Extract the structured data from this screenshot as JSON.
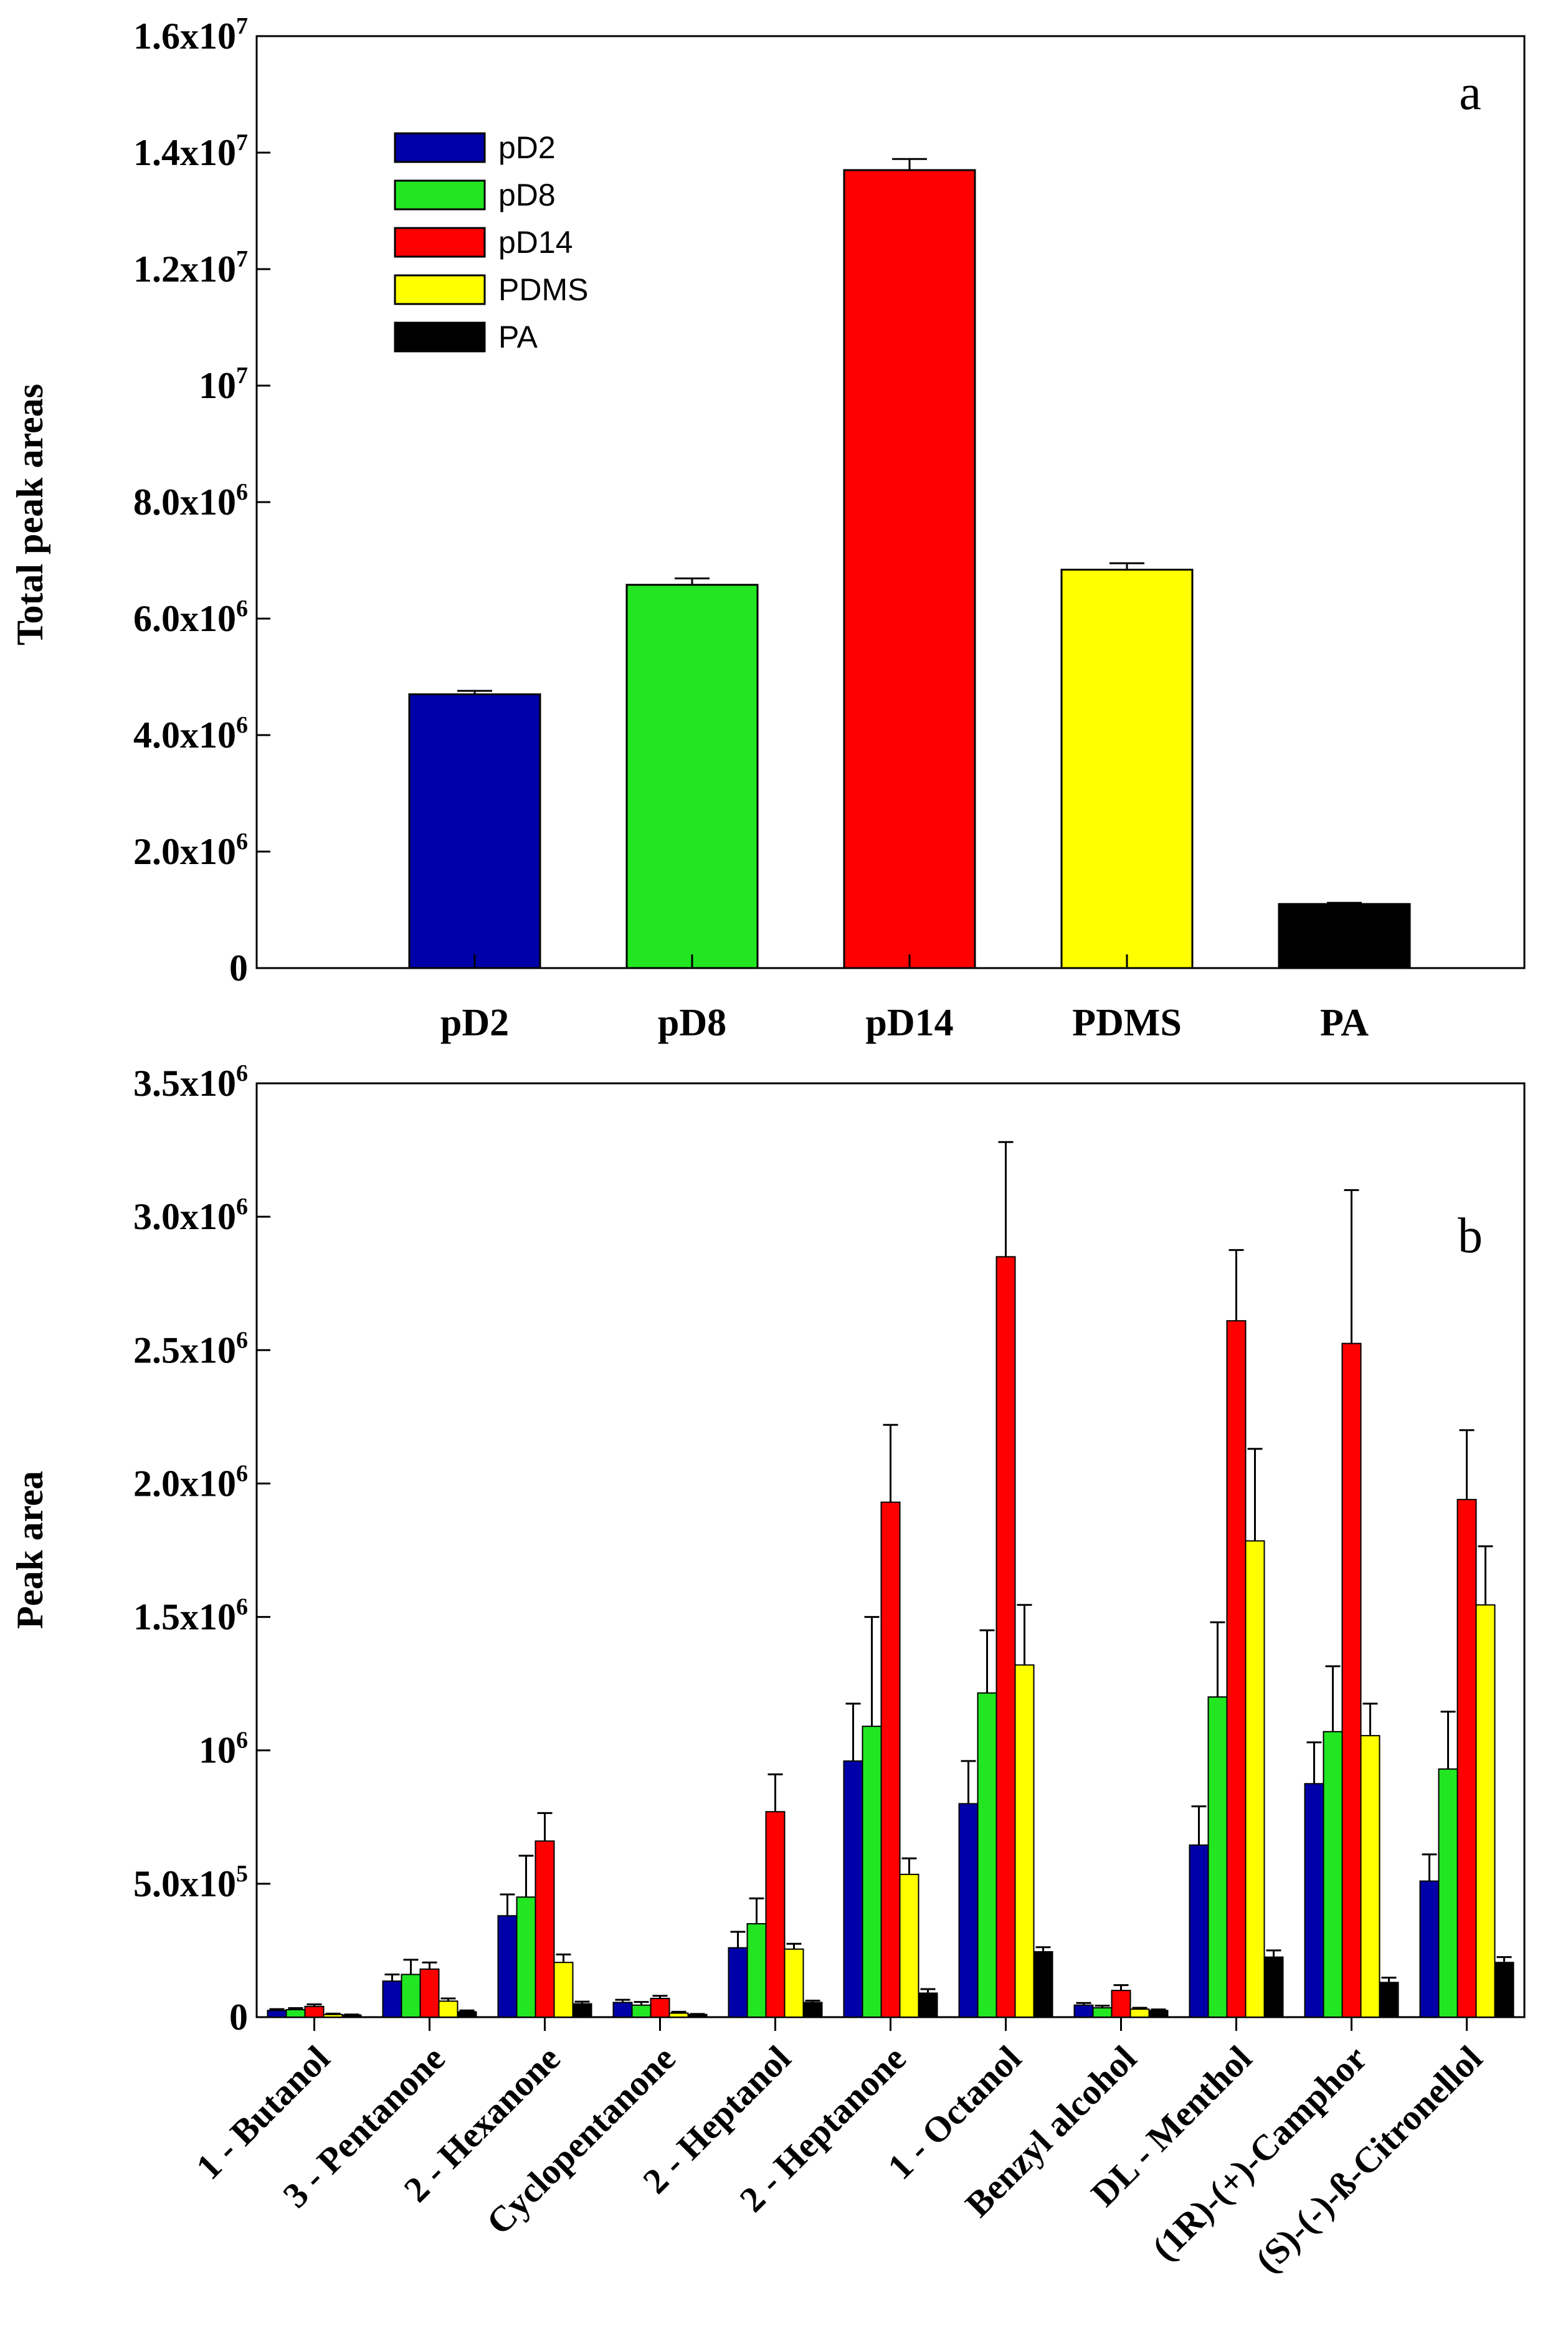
{
  "colors": {
    "pD2": "#0000a8",
    "pD8": "#22e622",
    "pD14": "#ff0000",
    "PDMS": "#ffff00",
    "PA": "#000000"
  },
  "panel_a_letter": "a",
  "panel_b_letter": "b",
  "legend_labels": [
    "pD2",
    "pD8",
    "pD14",
    "PDMS",
    "PA"
  ],
  "chart_data": [
    {
      "type": "bar",
      "panel": "a",
      "title": "",
      "xlabel": "",
      "ylabel": "Total peak areas",
      "ylim": [
        0,
        16000000
      ],
      "legend_position": "top-left",
      "categories": [
        "pD2",
        "pD8",
        "pD14",
        "PDMS",
        "PA"
      ],
      "values": [
        4700000,
        6580000,
        13700000,
        6840000,
        1100000
      ],
      "errors": [
        60000,
        110000,
        190000,
        110000,
        20000
      ],
      "yticks": [
        {
          "value": 0,
          "base": "0",
          "exp": ""
        },
        {
          "value": 2000000,
          "base": "2.0x10",
          "exp": "6"
        },
        {
          "value": 4000000,
          "base": "4.0x10",
          "exp": "6"
        },
        {
          "value": 6000000,
          "base": "6.0x10",
          "exp": "6"
        },
        {
          "value": 8000000,
          "base": "8.0x10",
          "exp": "6"
        },
        {
          "value": 10000000,
          "base": "10",
          "exp": "7"
        },
        {
          "value": 12000000,
          "base": "1.2x10",
          "exp": "7"
        },
        {
          "value": 14000000,
          "base": "1.4x10",
          "exp": "7"
        },
        {
          "value": 16000000,
          "base": "1.6x10",
          "exp": "7"
        }
      ]
    },
    {
      "type": "bar",
      "panel": "b",
      "title": "",
      "xlabel": "",
      "ylabel": "Peak area",
      "ylim": [
        0,
        3500000
      ],
      "categories": [
        "1 - Butanol",
        "3 - Pentanone",
        "2 - Hexanone",
        "Cyclopentanone",
        "2 - Heptanol",
        "2 - Heptanone",
        "1 - Octanol",
        "Benzyl alcohol",
        "DL - Menthol",
        "(1R)-(+)-Camphor",
        "(S)-(-)-ß-Citronellol"
      ],
      "series": [
        {
          "name": "pD2",
          "values": [
            25000,
            135000,
            380000,
            55000,
            260000,
            960000,
            800000,
            45000,
            645000,
            875000,
            510000
          ],
          "errors": [
            5000,
            25000,
            80000,
            10000,
            60000,
            215000,
            160000,
            8000,
            145000,
            155000,
            100000
          ]
        },
        {
          "name": "pD8",
          "values": [
            28000,
            160000,
            450000,
            45000,
            350000,
            1090000,
            1215000,
            35000,
            1200000,
            1070000,
            930000
          ],
          "errors": [
            6000,
            55000,
            155000,
            12000,
            95000,
            410000,
            235000,
            8000,
            280000,
            245000,
            215000
          ]
        },
        {
          "name": "pD14",
          "values": [
            40000,
            180000,
            660000,
            70000,
            770000,
            1930000,
            2850000,
            100000,
            2610000,
            2525000,
            1940000
          ],
          "errors": [
            8000,
            25000,
            105000,
            10000,
            140000,
            290000,
            430000,
            20000,
            265000,
            575000,
            260000
          ]
        },
        {
          "name": "PDMS",
          "values": [
            10000,
            60000,
            205000,
            15000,
            255000,
            535000,
            1320000,
            30000,
            1785000,
            1055000,
            1545000
          ],
          "errors": [
            3000,
            10000,
            30000,
            5000,
            20000,
            60000,
            225000,
            5000,
            345000,
            120000,
            220000
          ]
        },
        {
          "name": "PA",
          "values": [
            8000,
            20000,
            50000,
            10000,
            55000,
            90000,
            245000,
            25000,
            225000,
            130000,
            205000
          ],
          "errors": [
            2000,
            5000,
            8000,
            2000,
            7000,
            15000,
            17000,
            4000,
            25000,
            18000,
            20000
          ]
        }
      ],
      "yticks": [
        {
          "value": 0,
          "base": "0",
          "exp": ""
        },
        {
          "value": 500000,
          "base": "5.0x10",
          "exp": "5"
        },
        {
          "value": 1000000,
          "base": "10",
          "exp": "6"
        },
        {
          "value": 1500000,
          "base": "1.5x10",
          "exp": "6"
        },
        {
          "value": 2000000,
          "base": "2.0x10",
          "exp": "6"
        },
        {
          "value": 2500000,
          "base": "2.5x10",
          "exp": "6"
        },
        {
          "value": 3000000,
          "base": "3.0x10",
          "exp": "6"
        },
        {
          "value": 3500000,
          "base": "3.5x10",
          "exp": "6"
        }
      ]
    }
  ]
}
